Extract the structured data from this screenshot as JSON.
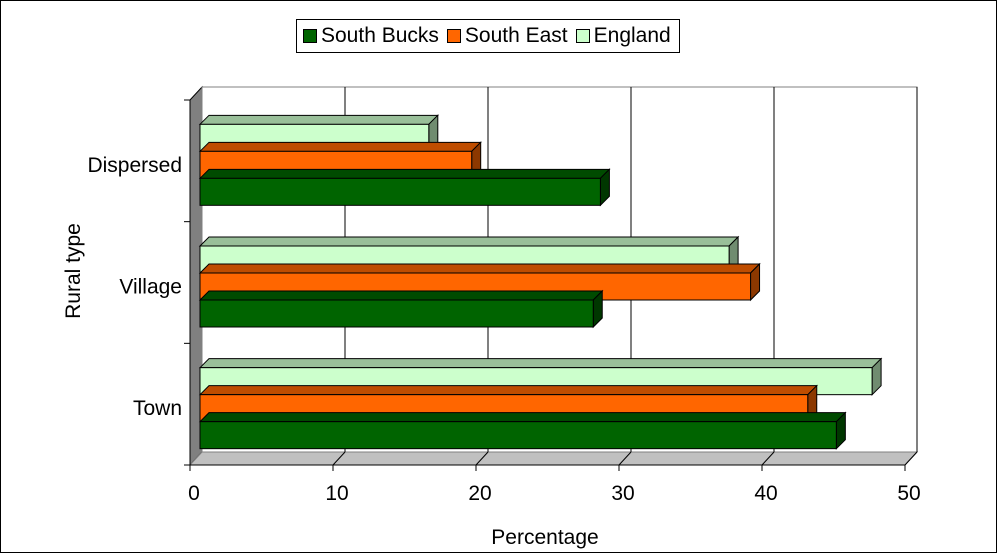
{
  "chart_data": {
    "type": "bar",
    "orientation": "horizontal",
    "three_d": true,
    "categories": [
      "Dispersed",
      "Village",
      "Town"
    ],
    "series": [
      {
        "name": "South Bucks",
        "values": [
          28,
          27.5,
          44.5
        ],
        "color": "#006400"
      },
      {
        "name": "South East",
        "values": [
          19,
          38.5,
          42.5
        ],
        "color": "#ff6600"
      },
      {
        "name": "England",
        "values": [
          16,
          37,
          47
        ],
        "color": "#ccffcc"
      }
    ],
    "xlabel": "Percentage",
    "ylabel": "Rural type",
    "xlim": [
      0,
      50
    ],
    "x_ticks": [
      "0",
      "10",
      "20",
      "30",
      "40",
      "50"
    ],
    "grid": true,
    "legend_position": "top"
  }
}
